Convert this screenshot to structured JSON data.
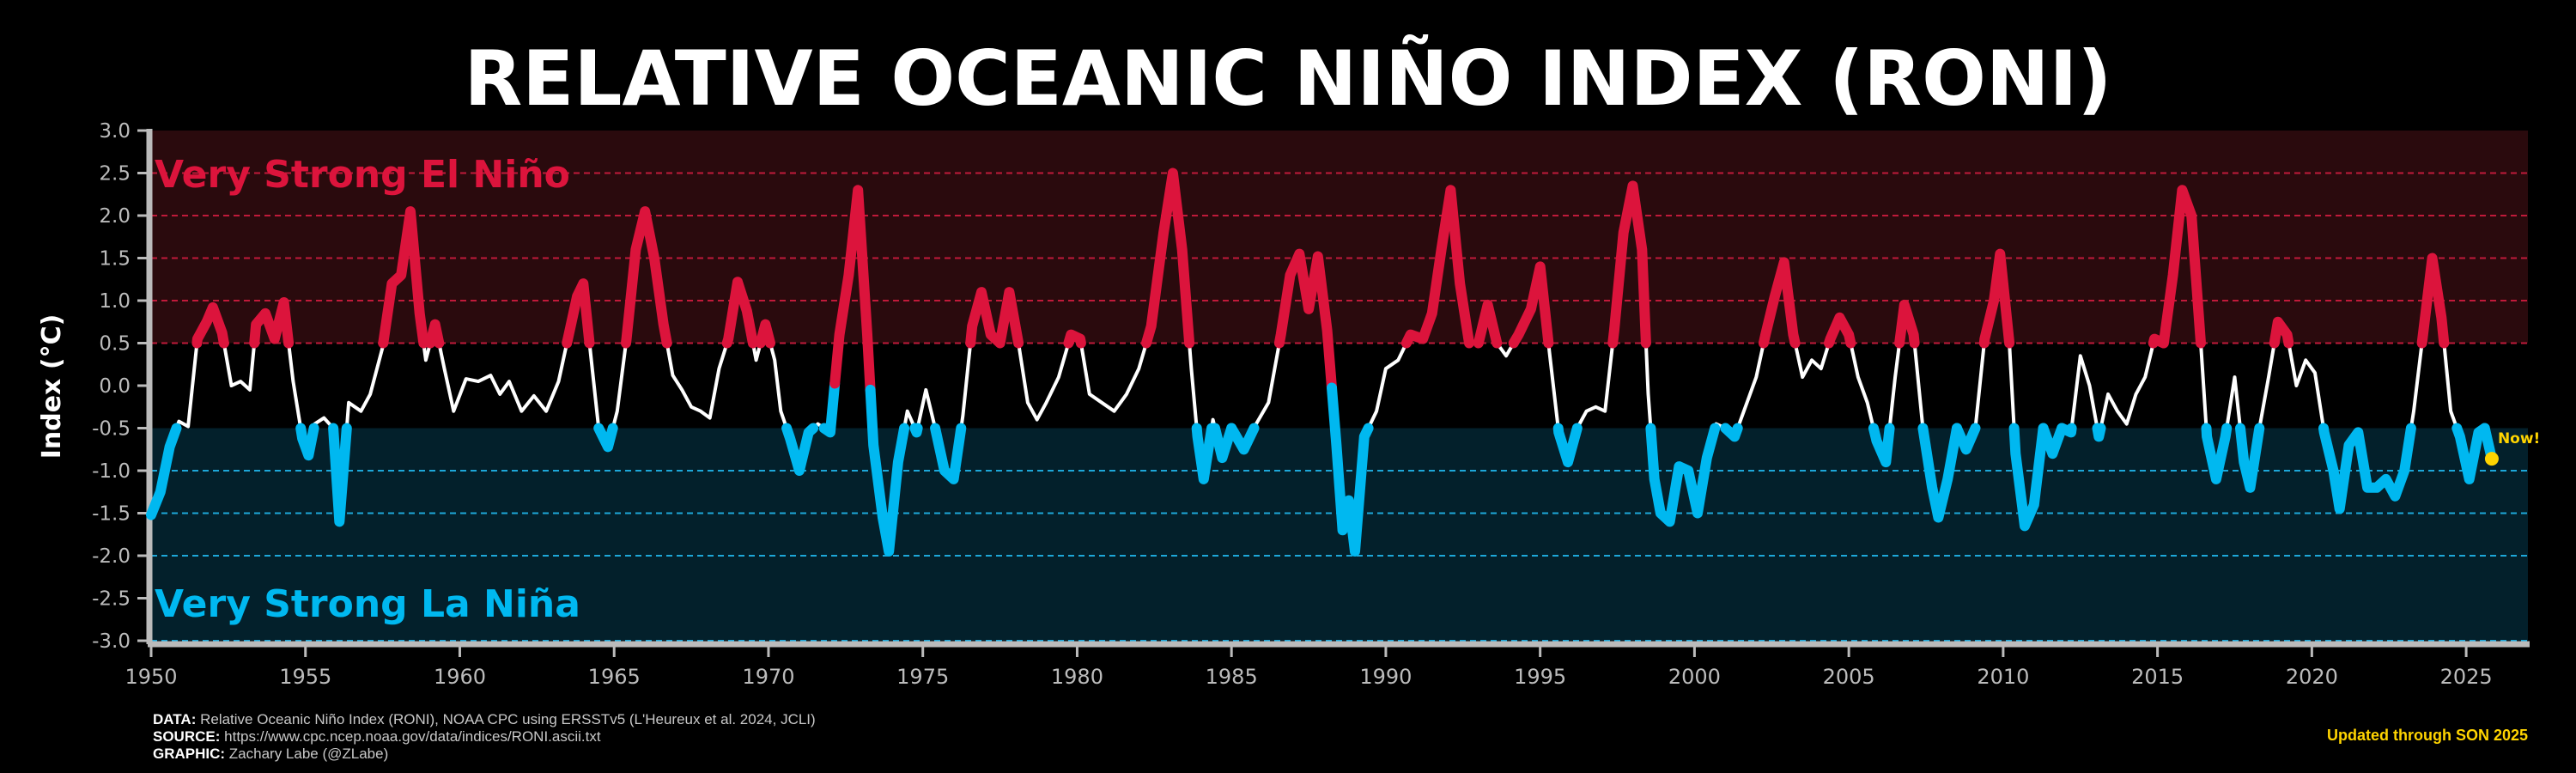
{
  "chart_data": {
    "type": "line",
    "title": "RELATIVE OCEANIC NIÑO INDEX (RONI)",
    "ylabel": "Index (°C)",
    "xlabel": "",
    "xlim": [
      1950,
      2027
    ],
    "ylim": [
      -3.0,
      3.0
    ],
    "x_ticks": [
      1950,
      1955,
      1960,
      1965,
      1970,
      1975,
      1980,
      1985,
      1990,
      1995,
      2000,
      2005,
      2010,
      2015,
      2020,
      2025
    ],
    "y_ticks": [
      3.0,
      2.5,
      2.0,
      1.5,
      1.0,
      0.5,
      0.0,
      -0.5,
      -1.0,
      -1.5,
      -2.0,
      -2.5,
      -3.0
    ],
    "y_tick_labels": [
      "3.0",
      "2.5",
      "2.0",
      "1.5",
      "1.0",
      "0.5",
      "0.0",
      "-0.5",
      "-1.0",
      "-1.5",
      "-2.0",
      "-2.5",
      "-3.0"
    ],
    "dashed_levels": [
      2.5,
      2.0,
      1.5,
      1.0,
      0.5,
      -1.0,
      -1.5,
      -2.0,
      -3.0
    ],
    "thresholds": {
      "el_nino": 0.5,
      "la_nina": -0.5
    },
    "region_labels": {
      "top": "Very Strong El Niño",
      "bottom": "Very Strong La Niña"
    },
    "colors": {
      "el_nino": "#dc143c",
      "la_nina": "#00b8f0",
      "neutral": "#ffffff",
      "el_nino_band": "#2a0a0d",
      "la_nina_band": "#03202b",
      "el_nino_grid": "#c01a3a",
      "la_nina_grid": "#1da7d8",
      "now_marker": "#ffd400"
    },
    "now_label": "Now!",
    "now_point": {
      "x": 2025.83,
      "y": -0.86
    },
    "series": [
      {
        "points": [
          [
            1950.0,
            -1.52
          ],
          [
            1950.3,
            -1.25
          ],
          [
            1950.6,
            -0.72
          ],
          [
            1950.9,
            -0.42
          ],
          [
            1951.2,
            -0.48
          ],
          [
            1951.5,
            0.55
          ],
          [
            1951.8,
            0.75
          ],
          [
            1952.0,
            0.92
          ],
          [
            1952.3,
            0.62
          ],
          [
            1952.6,
            0.0
          ],
          [
            1952.9,
            0.05
          ],
          [
            1953.2,
            -0.05
          ],
          [
            1953.4,
            0.72
          ],
          [
            1953.7,
            0.85
          ],
          [
            1954.0,
            0.55
          ],
          [
            1954.3,
            0.98
          ],
          [
            1954.6,
            0.05
          ],
          [
            1954.9,
            -0.62
          ],
          [
            1955.1,
            -0.82
          ],
          [
            1955.3,
            -0.45
          ],
          [
            1955.6,
            -0.38
          ],
          [
            1955.9,
            -0.5
          ],
          [
            1956.1,
            -1.6
          ],
          [
            1956.4,
            -0.2
          ],
          [
            1956.8,
            -0.3
          ],
          [
            1957.1,
            -0.1
          ],
          [
            1957.5,
            0.45
          ],
          [
            1957.8,
            1.2
          ],
          [
            1958.1,
            1.3
          ],
          [
            1958.4,
            2.05
          ],
          [
            1958.7,
            0.85
          ],
          [
            1958.9,
            0.3
          ],
          [
            1959.2,
            0.72
          ],
          [
            1959.5,
            0.2
          ],
          [
            1959.8,
            -0.3
          ],
          [
            1960.2,
            0.08
          ],
          [
            1960.6,
            0.05
          ],
          [
            1961.0,
            0.12
          ],
          [
            1961.3,
            -0.1
          ],
          [
            1961.6,
            0.05
          ],
          [
            1962.0,
            -0.3
          ],
          [
            1962.4,
            -0.12
          ],
          [
            1962.8,
            -0.3
          ],
          [
            1963.2,
            0.05
          ],
          [
            1963.5,
            0.55
          ],
          [
            1963.8,
            1.05
          ],
          [
            1964.0,
            1.2
          ],
          [
            1964.2,
            0.5
          ],
          [
            1964.5,
            -0.5
          ],
          [
            1964.8,
            -0.72
          ],
          [
            1965.1,
            -0.3
          ],
          [
            1965.4,
            0.55
          ],
          [
            1965.7,
            1.6
          ],
          [
            1966.0,
            2.05
          ],
          [
            1966.3,
            1.5
          ],
          [
            1966.6,
            0.72
          ],
          [
            1966.9,
            0.12
          ],
          [
            1967.2,
            -0.05
          ],
          [
            1967.5,
            -0.25
          ],
          [
            1967.8,
            -0.3
          ],
          [
            1968.1,
            -0.38
          ],
          [
            1968.4,
            0.2
          ],
          [
            1968.7,
            0.55
          ],
          [
            1969.0,
            1.22
          ],
          [
            1969.3,
            0.88
          ],
          [
            1969.6,
            0.3
          ],
          [
            1969.9,
            0.72
          ],
          [
            1970.2,
            0.3
          ],
          [
            1970.4,
            -0.3
          ],
          [
            1970.7,
            -0.62
          ],
          [
            1971.0,
            -1.0
          ],
          [
            1971.3,
            -0.55
          ],
          [
            1971.6,
            -0.45
          ],
          [
            1972.0,
            -0.55
          ],
          [
            1972.3,
            0.6
          ],
          [
            1972.6,
            1.3
          ],
          [
            1972.9,
            2.3
          ],
          [
            1973.2,
            0.6
          ],
          [
            1973.4,
            -0.7
          ],
          [
            1973.7,
            -1.55
          ],
          [
            1973.9,
            -1.95
          ],
          [
            1974.2,
            -0.9
          ],
          [
            1974.5,
            -0.3
          ],
          [
            1974.8,
            -0.55
          ],
          [
            1975.1,
            -0.05
          ],
          [
            1975.4,
            -0.5
          ],
          [
            1975.7,
            -1.0
          ],
          [
            1976.0,
            -1.1
          ],
          [
            1976.3,
            -0.35
          ],
          [
            1976.6,
            0.7
          ],
          [
            1976.9,
            1.1
          ],
          [
            1977.2,
            0.6
          ],
          [
            1977.5,
            0.5
          ],
          [
            1977.8,
            1.1
          ],
          [
            1978.1,
            0.5
          ],
          [
            1978.4,
            -0.2
          ],
          [
            1978.7,
            -0.4
          ],
          [
            1979.0,
            -0.2
          ],
          [
            1979.4,
            0.1
          ],
          [
            1979.8,
            0.6
          ],
          [
            1980.1,
            0.55
          ],
          [
            1980.4,
            -0.1
          ],
          [
            1980.8,
            -0.2
          ],
          [
            1981.2,
            -0.3
          ],
          [
            1981.6,
            -0.1
          ],
          [
            1982.0,
            0.2
          ],
          [
            1982.4,
            0.7
          ],
          [
            1982.8,
            1.8
          ],
          [
            1983.1,
            2.5
          ],
          [
            1983.4,
            1.6
          ],
          [
            1983.7,
            0.2
          ],
          [
            1983.9,
            -0.6
          ],
          [
            1984.1,
            -1.1
          ],
          [
            1984.4,
            -0.4
          ],
          [
            1984.7,
            -0.85
          ],
          [
            1985.0,
            -0.5
          ],
          [
            1985.4,
            -0.75
          ],
          [
            1985.8,
            -0.45
          ],
          [
            1986.2,
            -0.2
          ],
          [
            1986.6,
            0.6
          ],
          [
            1986.9,
            1.3
          ],
          [
            1987.2,
            1.55
          ],
          [
            1987.5,
            0.9
          ],
          [
            1987.8,
            1.52
          ],
          [
            1988.1,
            0.65
          ],
          [
            1988.4,
            -0.7
          ],
          [
            1988.6,
            -1.7
          ],
          [
            1988.8,
            -1.35
          ],
          [
            1989.0,
            -1.95
          ],
          [
            1989.3,
            -0.6
          ],
          [
            1989.7,
            -0.3
          ],
          [
            1990.0,
            0.2
          ],
          [
            1990.4,
            0.3
          ],
          [
            1990.8,
            0.6
          ],
          [
            1991.2,
            0.55
          ],
          [
            1991.5,
            0.85
          ],
          [
            1991.8,
            1.6
          ],
          [
            1992.1,
            2.3
          ],
          [
            1992.4,
            1.2
          ],
          [
            1992.7,
            0.5
          ],
          [
            1993.0,
            0.5
          ],
          [
            1993.3,
            0.95
          ],
          [
            1993.6,
            0.5
          ],
          [
            1993.9,
            0.35
          ],
          [
            1994.3,
            0.6
          ],
          [
            1994.7,
            0.9
          ],
          [
            1995.0,
            1.4
          ],
          [
            1995.3,
            0.4
          ],
          [
            1995.6,
            -0.55
          ],
          [
            1995.9,
            -0.9
          ],
          [
            1996.2,
            -0.5
          ],
          [
            1996.5,
            -0.3
          ],
          [
            1996.8,
            -0.25
          ],
          [
            1997.1,
            -0.3
          ],
          [
            1997.4,
            0.65
          ],
          [
            1997.7,
            1.8
          ],
          [
            1998.0,
            2.35
          ],
          [
            1998.3,
            1.6
          ],
          [
            1998.5,
            -0.1
          ],
          [
            1998.7,
            -1.1
          ],
          [
            1998.9,
            -1.5
          ],
          [
            1999.2,
            -1.6
          ],
          [
            1999.5,
            -0.95
          ],
          [
            1999.8,
            -1.0
          ],
          [
            2000.1,
            -1.5
          ],
          [
            2000.4,
            -0.85
          ],
          [
            2000.7,
            -0.45
          ],
          [
            2001.0,
            -0.5
          ],
          [
            2001.3,
            -0.6
          ],
          [
            2001.6,
            -0.3
          ],
          [
            2002.0,
            0.1
          ],
          [
            2002.3,
            0.6
          ],
          [
            2002.6,
            1.05
          ],
          [
            2002.9,
            1.45
          ],
          [
            2003.2,
            0.6
          ],
          [
            2003.5,
            0.1
          ],
          [
            2003.8,
            0.3
          ],
          [
            2004.1,
            0.2
          ],
          [
            2004.4,
            0.55
          ],
          [
            2004.7,
            0.8
          ],
          [
            2005.0,
            0.6
          ],
          [
            2005.3,
            0.1
          ],
          [
            2005.6,
            -0.2
          ],
          [
            2005.9,
            -0.65
          ],
          [
            2006.2,
            -0.9
          ],
          [
            2006.5,
            0.1
          ],
          [
            2006.8,
            0.95
          ],
          [
            2007.1,
            0.6
          ],
          [
            2007.4,
            -0.5
          ],
          [
            2007.7,
            -1.2
          ],
          [
            2007.9,
            -1.55
          ],
          [
            2008.2,
            -1.1
          ],
          [
            2008.5,
            -0.5
          ],
          [
            2008.8,
            -0.75
          ],
          [
            2009.1,
            -0.5
          ],
          [
            2009.4,
            0.55
          ],
          [
            2009.7,
            1.0
          ],
          [
            2009.9,
            1.55
          ],
          [
            2010.2,
            0.5
          ],
          [
            2010.4,
            -0.8
          ],
          [
            2010.7,
            -1.65
          ],
          [
            2011.0,
            -1.4
          ],
          [
            2011.3,
            -0.5
          ],
          [
            2011.6,
            -0.8
          ],
          [
            2011.9,
            -0.5
          ],
          [
            2012.2,
            -0.55
          ],
          [
            2012.5,
            0.35
          ],
          [
            2012.8,
            0.0
          ],
          [
            2013.1,
            -0.6
          ],
          [
            2013.4,
            -0.1
          ],
          [
            2013.7,
            -0.3
          ],
          [
            2014.0,
            -0.45
          ],
          [
            2014.3,
            -0.1
          ],
          [
            2014.6,
            0.1
          ],
          [
            2014.9,
            0.55
          ],
          [
            2015.2,
            0.5
          ],
          [
            2015.5,
            1.3
          ],
          [
            2015.8,
            2.3
          ],
          [
            2016.1,
            2.0
          ],
          [
            2016.4,
            0.5
          ],
          [
            2016.6,
            -0.6
          ],
          [
            2016.9,
            -1.1
          ],
          [
            2017.2,
            -0.6
          ],
          [
            2017.5,
            0.1
          ],
          [
            2017.8,
            -0.9
          ],
          [
            2018.0,
            -1.2
          ],
          [
            2018.3,
            -0.5
          ],
          [
            2018.6,
            0.1
          ],
          [
            2018.9,
            0.75
          ],
          [
            2019.2,
            0.6
          ],
          [
            2019.5,
            0.0
          ],
          [
            2019.8,
            0.3
          ],
          [
            2020.1,
            0.15
          ],
          [
            2020.4,
            -0.55
          ],
          [
            2020.7,
            -1.0
          ],
          [
            2020.9,
            -1.45
          ],
          [
            2021.2,
            -0.7
          ],
          [
            2021.5,
            -0.55
          ],
          [
            2021.8,
            -1.2
          ],
          [
            2022.1,
            -1.2
          ],
          [
            2022.4,
            -1.1
          ],
          [
            2022.7,
            -1.3
          ],
          [
            2023.0,
            -1.0
          ],
          [
            2023.3,
            -0.3
          ],
          [
            2023.6,
            0.6
          ],
          [
            2023.9,
            1.5
          ],
          [
            2024.2,
            0.8
          ],
          [
            2024.5,
            -0.3
          ],
          [
            2024.8,
            -0.6
          ],
          [
            2025.1,
            -1.1
          ],
          [
            2025.4,
            -0.55
          ],
          [
            2025.6,
            -0.5
          ],
          [
            2025.83,
            -0.86
          ]
        ]
      }
    ]
  },
  "footer": {
    "data_label": "DATA:",
    "data_text": "Relative Oceanic Niño Index (RONI), NOAA CPC using ERSSTv5 (L'Heureux et al. 2024, JCLI)",
    "source_label": "SOURCE:",
    "source_text": "https://www.cpc.ncep.noaa.gov/data/indices/RONI.ascii.txt",
    "graphic_label": "GRAPHIC:",
    "graphic_text": "Zachary Labe (@ZLabe)",
    "updated": "Updated through SON 2025"
  }
}
